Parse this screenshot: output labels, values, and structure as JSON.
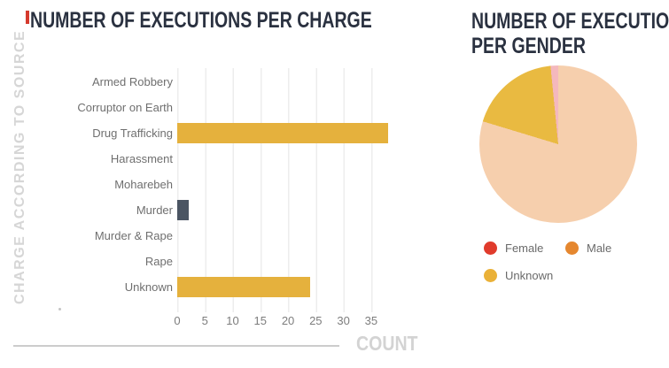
{
  "colors": {
    "accent_mark": "#d53a2d",
    "title_text": "#2a3140",
    "gridline": "#ededed",
    "bar_yellow": "#e5b13d",
    "bar_slate": "#4b5563",
    "baseline_gray": "#cccccc"
  },
  "chart_data": [
    {
      "type": "bar",
      "orientation": "horizontal",
      "title": "NUMBER OF EXECUTIONS PER CHARGE",
      "ylabel": "CHARGE ACCORDING TO SOURCE",
      "xlabel": "COUNT",
      "categories": [
        "Armed Robbery",
        "Corruptor on Earth",
        "Drug Trafficking",
        "Harassment",
        "Moharebeh",
        "Murder",
        "Murder & Rape",
        "Rape",
        "Unknown"
      ],
      "values": [
        0,
        0,
        38,
        0,
        0,
        2,
        0,
        0,
        24
      ],
      "bar_colors": [
        null,
        null,
        "#e5b13d",
        null,
        null,
        "#4b5563",
        null,
        null,
        "#e5b13d"
      ],
      "xticks": [
        0,
        5,
        10,
        15,
        20,
        25,
        30,
        35
      ],
      "xlim": [
        0,
        43.5
      ],
      "grid": "vertical-light-gray"
    },
    {
      "type": "pie",
      "title": "NUMBER OF EXECUTIONS PER GENDER",
      "title_lines": [
        "NUMBER OF EXECUTIONS",
        "PER GENDER"
      ],
      "slices": [
        {
          "label": "Female",
          "value": 1,
          "percent": 1.6,
          "legend_color": "#e03b2c",
          "slice_color": "#f4b8bd"
        },
        {
          "label": "Male",
          "value": 51,
          "percent": 79.7,
          "legend_color": "#e5872f",
          "slice_color": "#f6cfad"
        },
        {
          "label": "Unknown",
          "value": 12,
          "percent": 18.8,
          "legend_color": "#eab138",
          "slice_color": "#e9ba41"
        }
      ],
      "clockwise_from_top": [
        "Male",
        "Unknown",
        "Female"
      ],
      "legend_position": "below"
    }
  ]
}
